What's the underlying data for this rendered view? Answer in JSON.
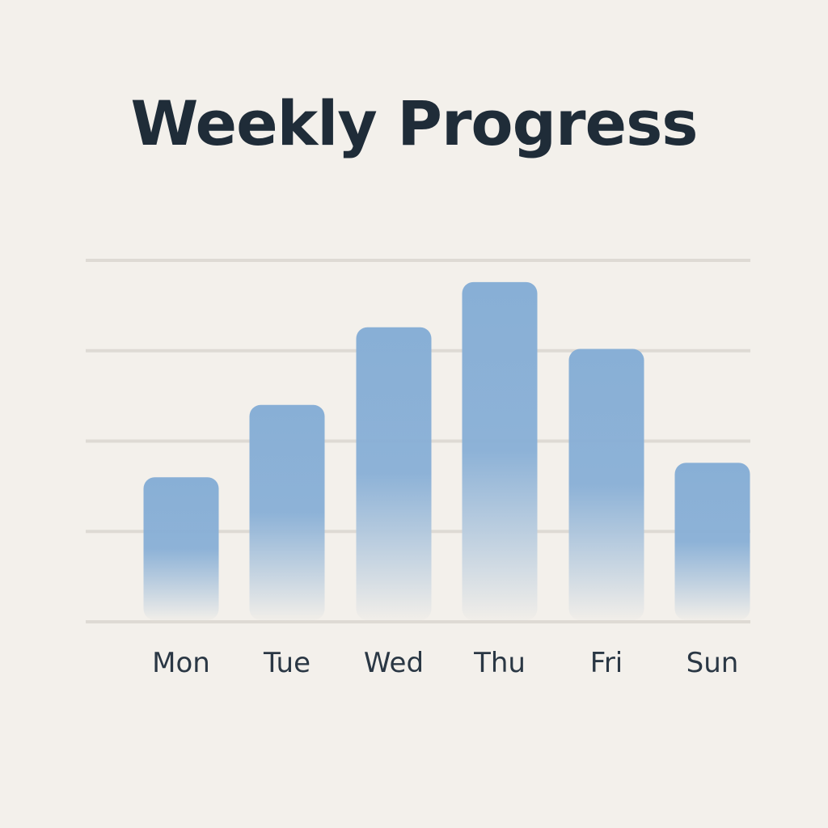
{
  "chart_data": {
    "type": "bar",
    "title": "Weekly Progress",
    "xlabel": "",
    "ylabel": "",
    "categories": [
      "Mon",
      "Tue",
      "Wed",
      "Thu",
      "Fri",
      "Sun"
    ],
    "values": [
      1.6,
      2.4,
      3.26,
      3.76,
      3.02,
      1.76
    ],
    "ylim": [
      0,
      4
    ],
    "grid": true,
    "colors": {
      "bar_top": "#88afd6",
      "bar_bottom": "#f1eee9",
      "grid": "#dedad4",
      "background": "#f3f0eb",
      "text": "#1f2c38"
    }
  }
}
